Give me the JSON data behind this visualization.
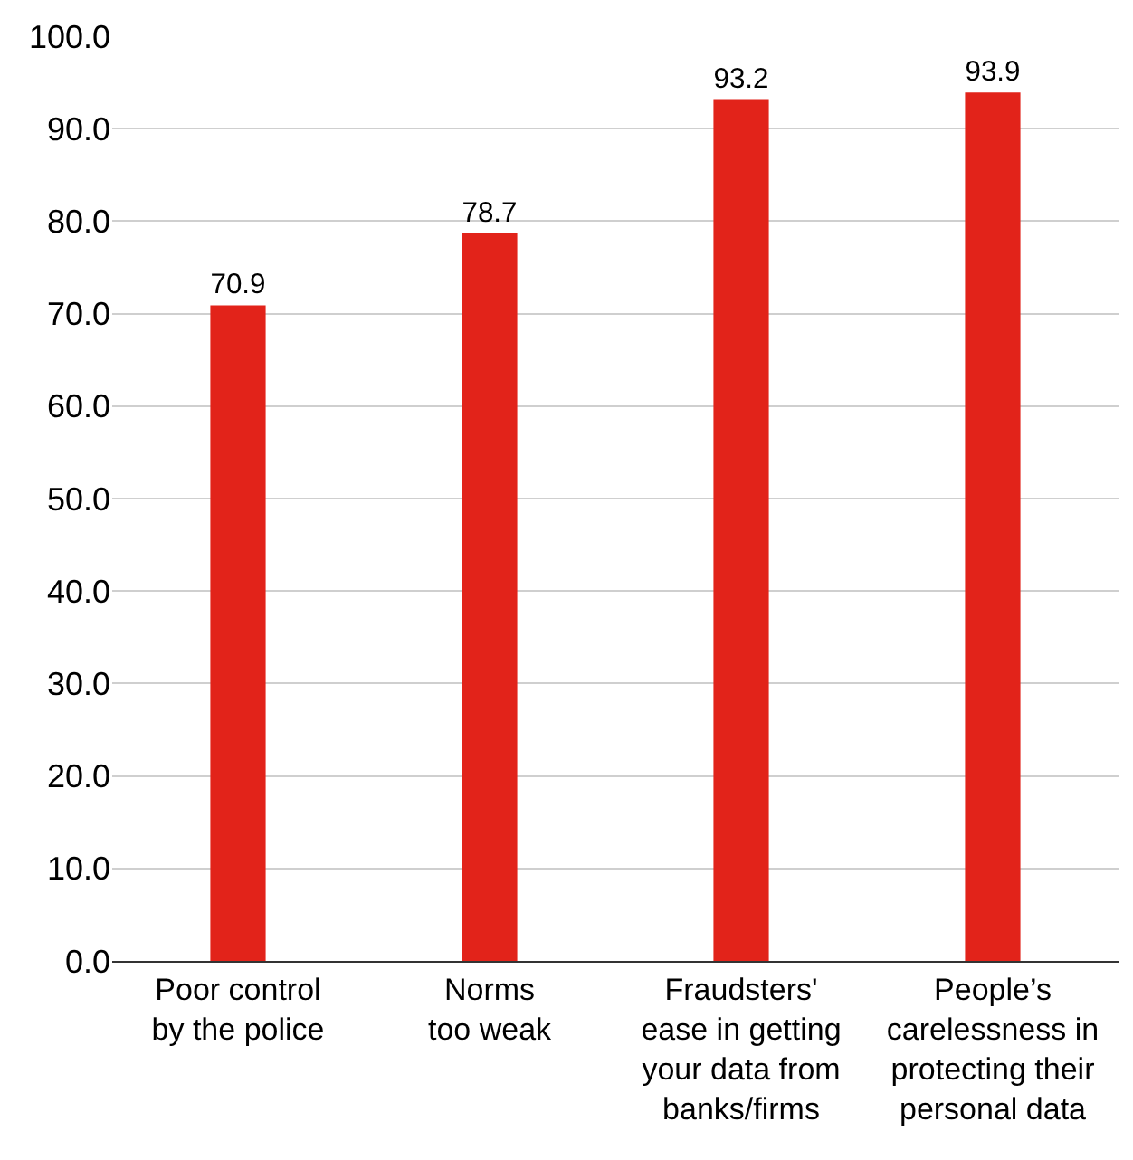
{
  "chart_data": {
    "type": "bar",
    "categories": [
      "Poor control\nby the police",
      "Norms\ntoo weak",
      "Fraudsters'\nease in getting\nyour data from\nbanks/firms",
      "People’s\ncarelessness in\nprotecting their\npersonal data"
    ],
    "values": [
      70.9,
      78.7,
      93.2,
      93.9
    ],
    "color": "#e2231a",
    "data_labels": true,
    "ylim": [
      0,
      100
    ],
    "yticks": [
      {
        "value": 0,
        "label": "0.0"
      },
      {
        "value": 10,
        "label": "10.0"
      },
      {
        "value": 20,
        "label": "20.0"
      },
      {
        "value": 30,
        "label": "30.0"
      },
      {
        "value": 40,
        "label": "40.0"
      },
      {
        "value": 50,
        "label": "50.0"
      },
      {
        "value": 60,
        "label": "60.0"
      },
      {
        "value": 70,
        "label": "70.0"
      },
      {
        "value": 80,
        "label": "80.0"
      },
      {
        "value": 90,
        "label": "90.0"
      },
      {
        "value": 100,
        "label": "100.0"
      }
    ],
    "grid": "y"
  }
}
